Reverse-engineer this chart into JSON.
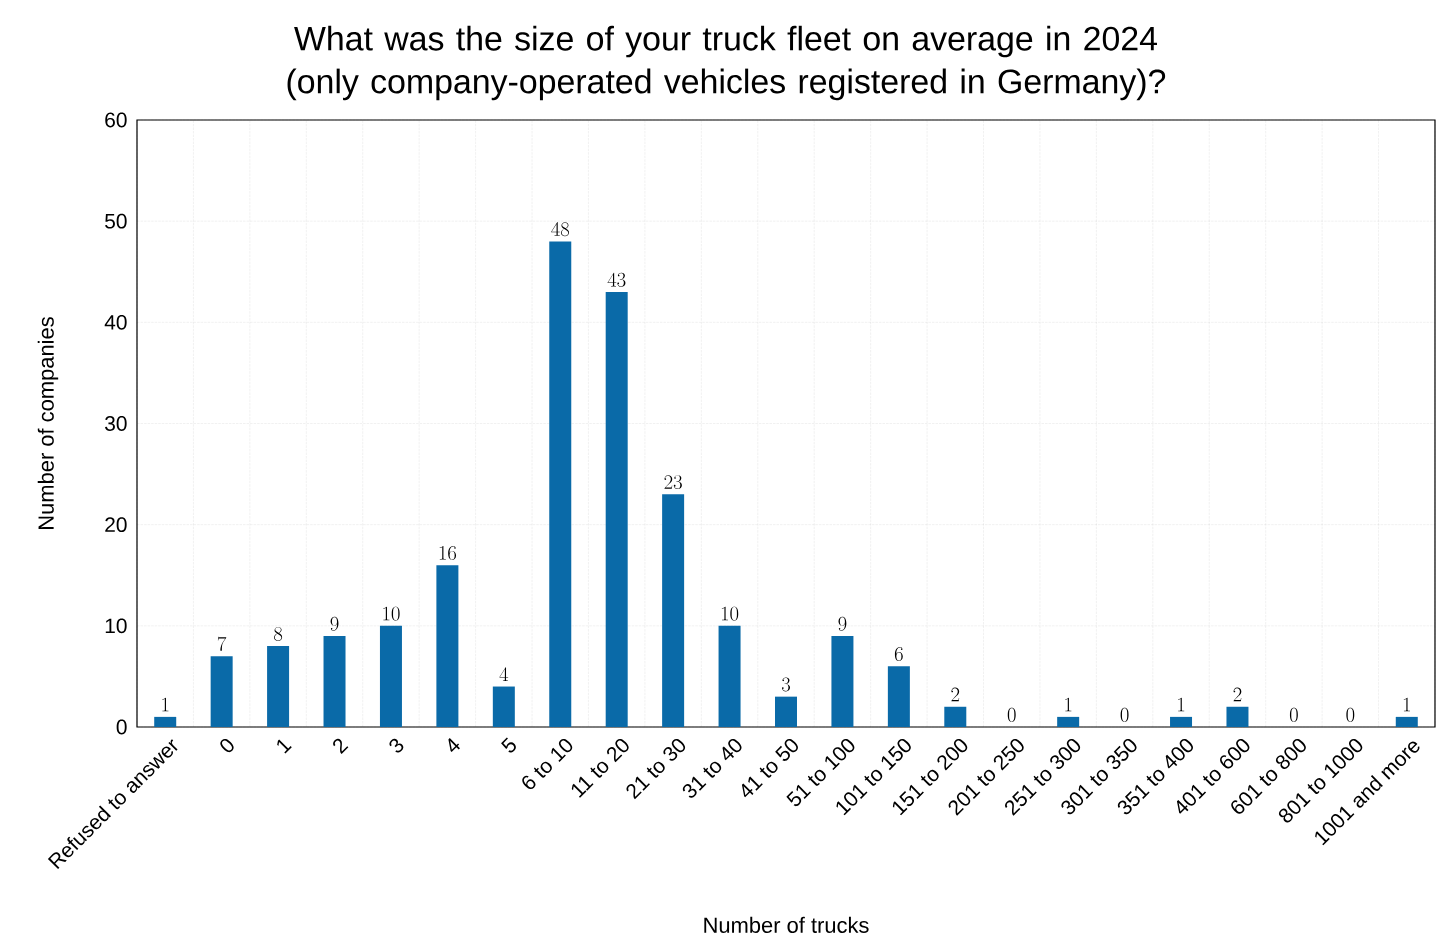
{
  "chart_data": {
    "type": "bar",
    "title": "What was the size of your truck fleet on average in 2024 (only company-operated vehicles registered in Germany)?",
    "xlabel": "Number of trucks",
    "ylabel": "Number of companies",
    "categories": [
      "Refused to answer",
      "0",
      "1",
      "2",
      "3",
      "4",
      "5",
      "6 to 10",
      "11 to 20",
      "21 to 30",
      "31 to 40",
      "41 to 50",
      "51 to 100",
      "101 to 150",
      "151 to 200",
      "201 to 250",
      "251 to 300",
      "301 to 350",
      "351 to 400",
      "401 to 600",
      "601 to 800",
      "801 to 1000",
      "1001 and more"
    ],
    "values": [
      1,
      7,
      8,
      9,
      10,
      16,
      4,
      48,
      43,
      23,
      10,
      3,
      9,
      6,
      2,
      0,
      1,
      0,
      1,
      2,
      0,
      0,
      1
    ],
    "color": "#0a6aa8",
    "ylim": [
      0,
      60
    ],
    "yticks": [
      0,
      10,
      20,
      30,
      40,
      50,
      60
    ],
    "grid": true,
    "data_labels": true
  }
}
